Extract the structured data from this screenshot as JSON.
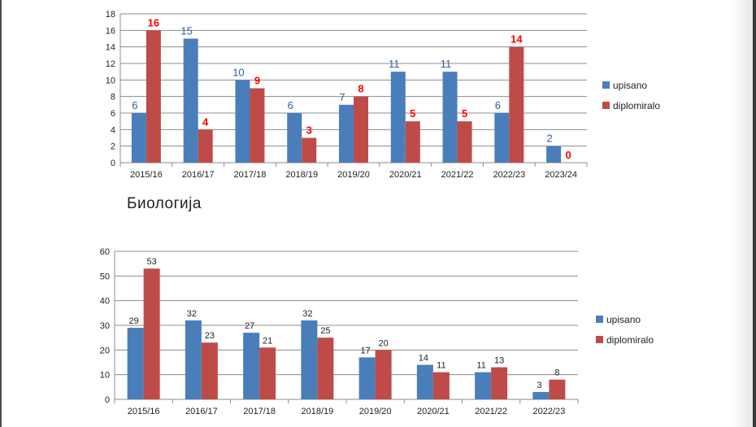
{
  "section_heading": "Биологија",
  "colors": {
    "upisano": "#4a7ebb",
    "diplomiralo": "#be4b48",
    "label_top_upisano": "#2f5f9c",
    "label_top_diplomiralo": "#ff0000",
    "label_bottom": "#222222",
    "grid": "#8c8c8c"
  },
  "chart_data": [
    {
      "type": "bar",
      "categories": [
        "2015/16",
        "2016/17",
        "2017/18",
        "2018/19",
        "2019/20",
        "2020/21",
        "2021/22",
        "2022/23",
        "2023/24"
      ],
      "series": [
        {
          "name": "upisano",
          "values": [
            6,
            15,
            10,
            6,
            7,
            11,
            11,
            6,
            2
          ]
        },
        {
          "name": "diplomiralo",
          "values": [
            16,
            4,
            9,
            3,
            8,
            5,
            5,
            14,
            0
          ]
        }
      ],
      "ylim": [
        0,
        18
      ],
      "yticks": [
        0,
        2,
        4,
        6,
        8,
        10,
        12,
        14,
        16,
        18
      ],
      "grid": true,
      "legend": "right"
    },
    {
      "type": "bar",
      "categories": [
        "2015/16",
        "2016/17",
        "2017/18",
        "2018/19",
        "2019/20",
        "2020/21",
        "2021/22",
        "2022/23"
      ],
      "series": [
        {
          "name": "upisano",
          "values": [
            29,
            32,
            27,
            32,
            17,
            14,
            11,
            3
          ]
        },
        {
          "name": "diplomiralo",
          "values": [
            53,
            23,
            21,
            25,
            20,
            11,
            13,
            8
          ]
        }
      ],
      "ylim": [
        0,
        60
      ],
      "yticks": [
        0,
        10,
        20,
        30,
        40,
        50,
        60
      ],
      "grid": true,
      "legend": "right"
    }
  ]
}
